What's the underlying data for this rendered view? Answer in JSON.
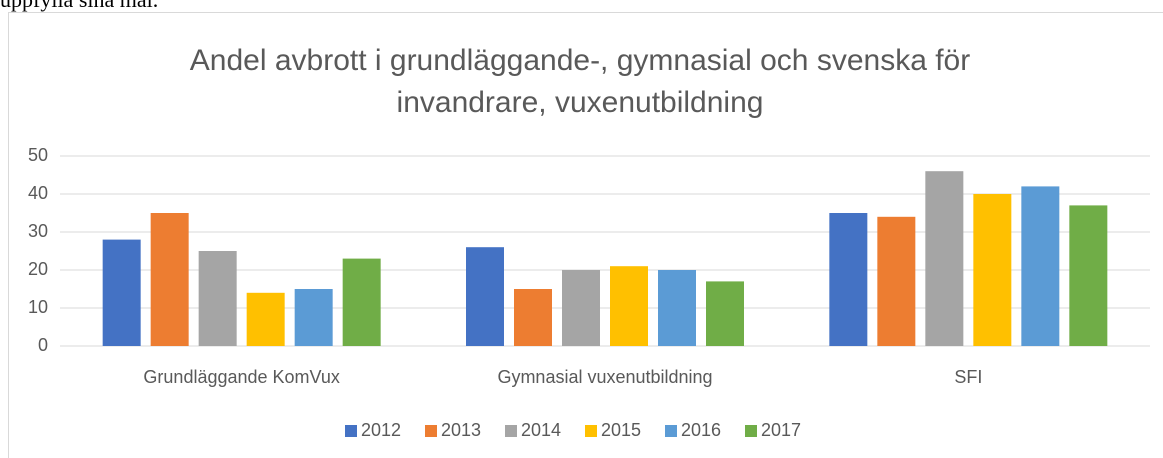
{
  "text_above": "uppfylla sina mål.",
  "chart_data": {
    "type": "bar",
    "title": "Andel avbrott i grundläggande-, gymnasial och svenska för invandrare, vuxenutbildning",
    "categories": [
      "Grundläggande KomVux",
      "Gymnasial vuxenutbildning",
      "SFI"
    ],
    "series": [
      {
        "name": "2012",
        "color": "#4472c4",
        "values": [
          28,
          26,
          35
        ]
      },
      {
        "name": "2013",
        "color": "#ed7d31",
        "values": [
          35,
          15,
          34
        ]
      },
      {
        "name": "2014",
        "color": "#a5a5a5",
        "values": [
          25,
          20,
          46
        ]
      },
      {
        "name": "2015",
        "color": "#ffc000",
        "values": [
          14,
          21,
          40
        ]
      },
      {
        "name": "2016",
        "color": "#5b9bd5",
        "values": [
          15,
          20,
          42
        ]
      },
      {
        "name": "2017",
        "color": "#70ad47",
        "values": [
          23,
          17,
          37
        ]
      }
    ],
    "ylim": [
      0,
      50
    ],
    "yticks": [
      0,
      10,
      20,
      30,
      40,
      50
    ],
    "grid": true,
    "legend": "bottom"
  }
}
